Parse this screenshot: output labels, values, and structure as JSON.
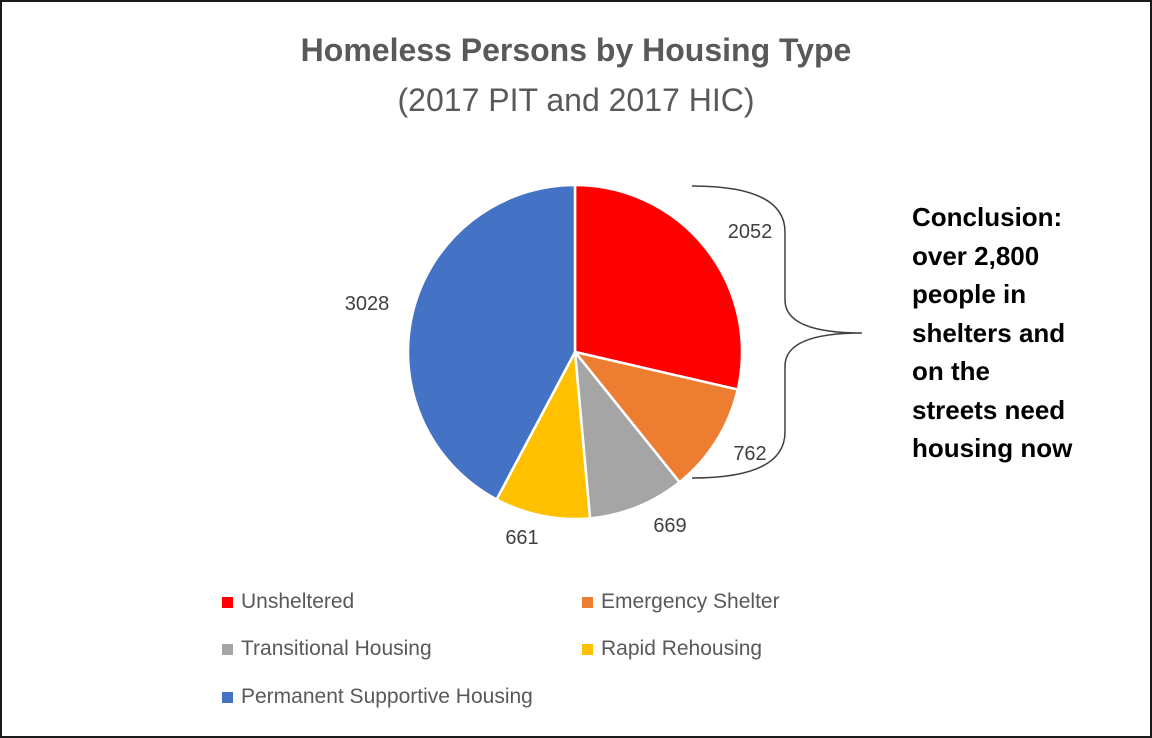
{
  "chart_data": {
    "type": "pie",
    "title": "Homeless Persons by Housing Type",
    "subtitle": "(2017 PIT and 2017 HIC)",
    "slices": [
      {
        "label": "Unsheltered",
        "value": 2052,
        "color": "#FF0000"
      },
      {
        "label": "Emergency Shelter",
        "value": 762,
        "color": "#ED7D31"
      },
      {
        "label": "Transitional Housing",
        "value": 669,
        "color": "#A5A5A5"
      },
      {
        "label": "Rapid Rehousing",
        "value": 661,
        "color": "#FFC000"
      },
      {
        "label": "Permanent Supportive Housing",
        "value": 3028,
        "color": "#4472C4"
      }
    ],
    "legend_position": "bottom",
    "annotation": [
      "Conclusion:",
      "over 2,800",
      "people in",
      "shelters and",
      "on the",
      "streets need",
      "housing now"
    ]
  }
}
